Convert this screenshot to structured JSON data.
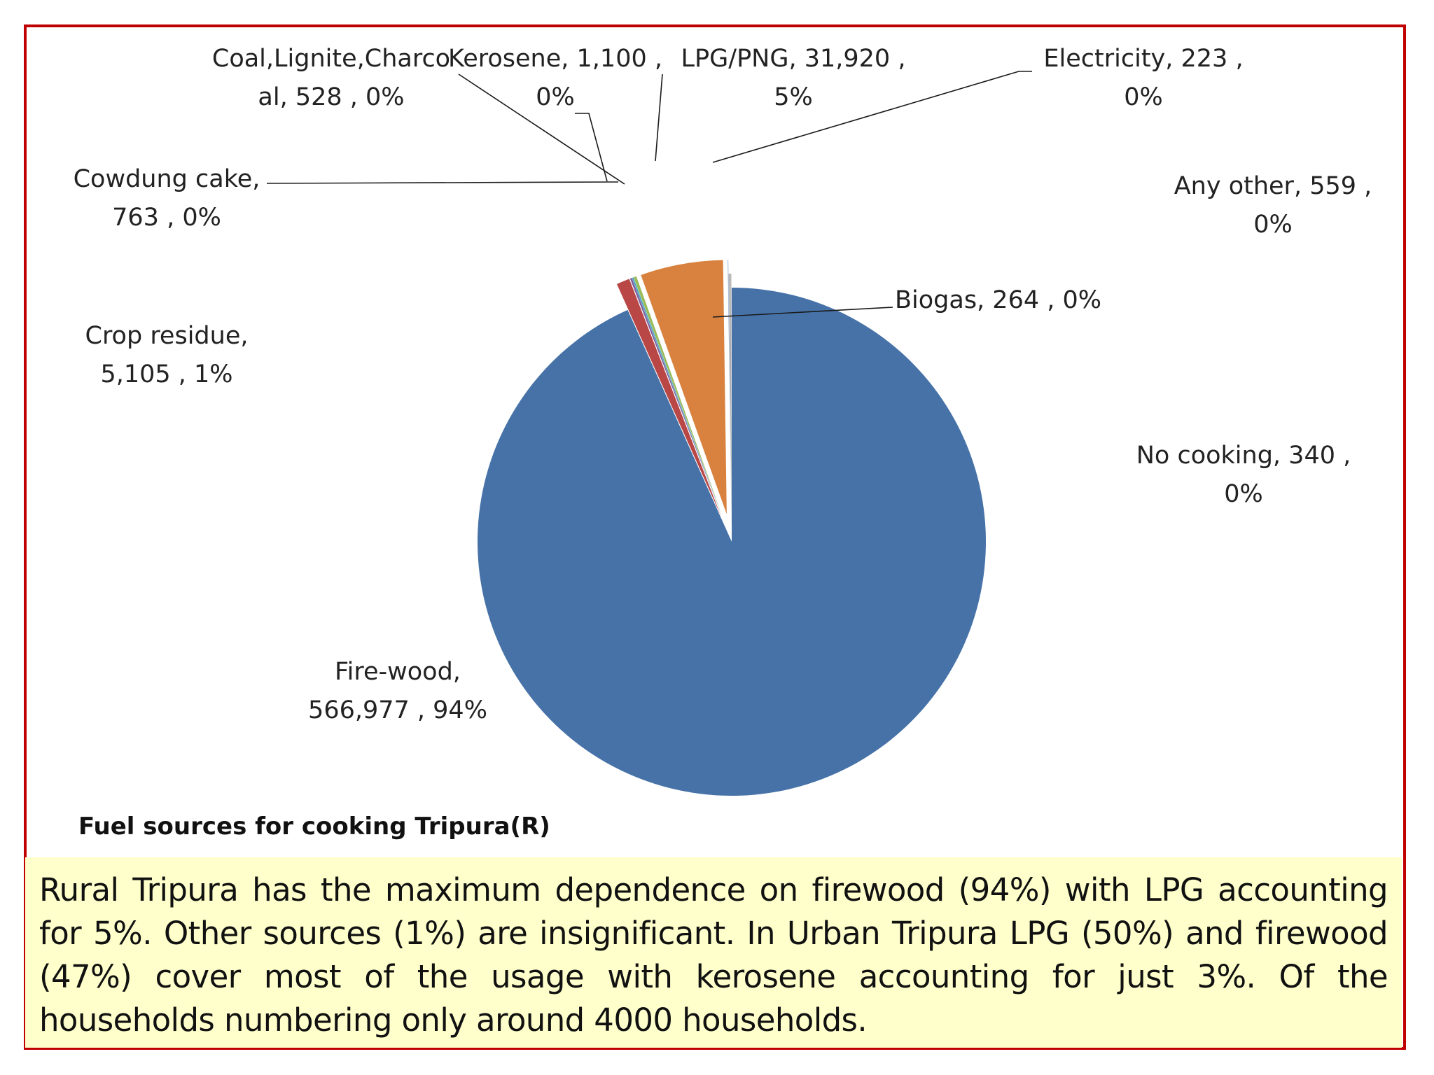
{
  "chart_data": {
    "type": "pie",
    "title": "Fuel sources for cooking Tripura(R)",
    "slices": [
      {
        "name": "Fire-wood",
        "value": 566977,
        "percent": "94%",
        "color": "#4672a8",
        "label_lines": [
          "Fire-wood,",
          "566,977 , 94%"
        ]
      },
      {
        "name": "Crop residue",
        "value": 5105,
        "percent": "1%",
        "color": "#b84745",
        "label_lines": [
          "Crop residue,",
          "5,105 , 1%"
        ]
      },
      {
        "name": "Cowdung cake",
        "value": 763,
        "percent": "0%",
        "color": "#8064a2",
        "label_lines": [
          "Cowdung cake,",
          "763 , 0%"
        ]
      },
      {
        "name": "Coal,Lignite,Charcoal",
        "value": 528,
        "percent": "0%",
        "color": "#4bacc6",
        "label_lines": [
          "Coal,Lignite,Charco",
          "al,  528 , 0%"
        ]
      },
      {
        "name": "Kerosene",
        "value": 1100,
        "percent": "0%",
        "color": "#9bbb59",
        "label_lines": [
          "Kerosene,  1,100 ,",
          "0%"
        ]
      },
      {
        "name": "LPG/PNG",
        "value": 31920,
        "percent": "5%",
        "color": "#d9823f",
        "label_lines": [
          "LPG/PNG,  31,920 ,",
          "5%"
        ]
      },
      {
        "name": "Electricity",
        "value": 223,
        "percent": "0%",
        "color": "#8ea9d0",
        "label_lines": [
          "Electricity,  223 ,",
          "0%"
        ]
      },
      {
        "name": "Biogas",
        "value": 264,
        "percent": "0%",
        "color": "#c9c9c9",
        "label_lines": [
          "Biogas,  264 , 0%"
        ]
      },
      {
        "name": "Any other",
        "value": 559,
        "percent": "0%",
        "color": "#a6a6a6",
        "label_lines": [
          "Any other,  559 ,",
          "0%"
        ]
      },
      {
        "name": "No cooking",
        "value": 340,
        "percent": "0%",
        "color": "#d9d9d9",
        "label_lines": [
          "No cooking,  340 ,",
          "0%"
        ]
      }
    ]
  },
  "note": {
    "text": "Rural Tripura has the maximum dependence on firewood (94%) with LPG accounting for 5%. Other sources (1%) are insignificant. In Urban Tripura LPG (50%) and firewood (47%) cover most of the usage with kerosene accounting for just 3%. Of the households numbering only around 4000 households."
  },
  "colors": {
    "frame_border": "#c00000",
    "note_background": "#ffffcc"
  }
}
